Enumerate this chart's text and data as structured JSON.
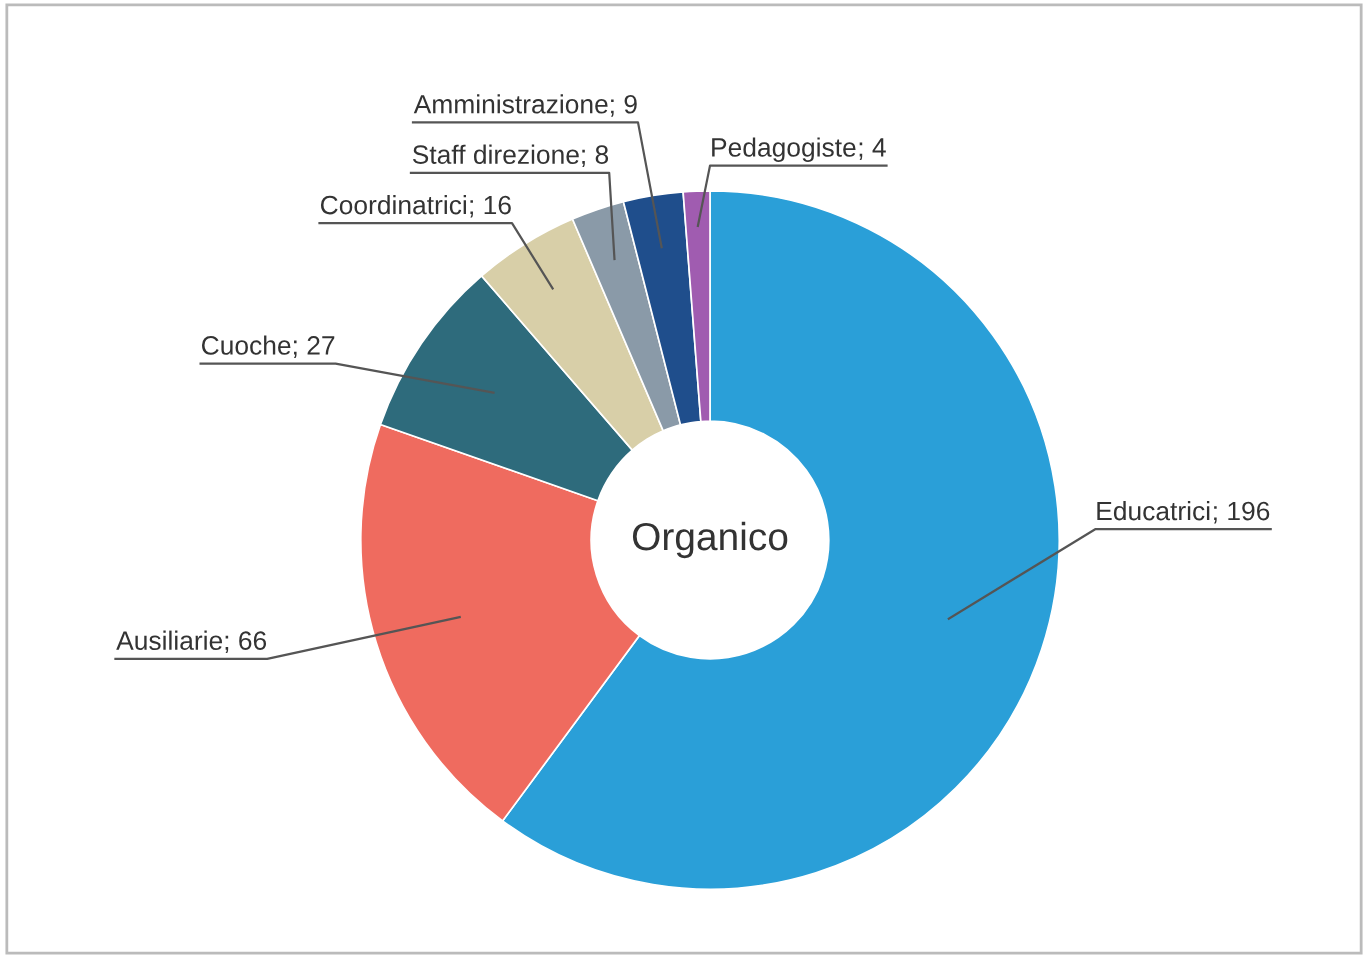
{
  "chart_data": {
    "type": "donut",
    "title": "Organico",
    "categories": [
      "Educatrici",
      "Ausiliarie",
      "Cuoche",
      "Coordinatrici",
      "Staff direzione",
      "Amministrazione",
      "Pedagogiste"
    ],
    "values": [
      196,
      66,
      27,
      16,
      8,
      9,
      4
    ],
    "value_labels": [
      "; 196",
      "; 66",
      "; 27",
      "; 16",
      "; 8",
      "; 9",
      "; 4"
    ],
    "colors": [
      "#2a9fd8",
      "#ef6b5f",
      "#2e6b7c",
      "#d8cfa8",
      "#8a9aa8",
      "#1f4e8c",
      "#a05cb0"
    ],
    "legend": false
  }
}
